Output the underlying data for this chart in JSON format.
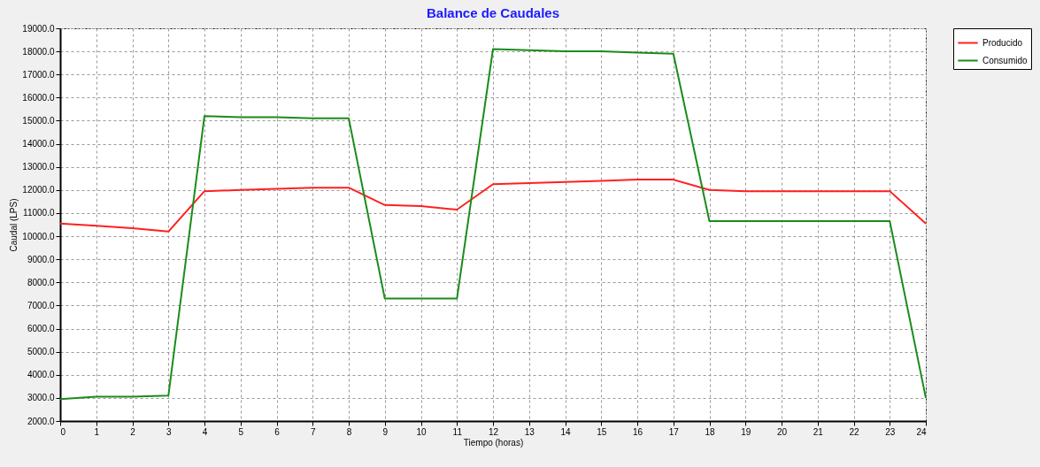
{
  "chart_data": {
    "type": "line",
    "title": "Balance de Caudales",
    "xlabel": "Tiempo (horas)",
    "ylabel": "Caudal (LPS)",
    "x": [
      0,
      1,
      2,
      3,
      4,
      5,
      6,
      7,
      8,
      9,
      10,
      11,
      12,
      13,
      14,
      15,
      16,
      17,
      18,
      19,
      20,
      21,
      22,
      23,
      24
    ],
    "series": [
      {
        "name": "Producido",
        "color": "#ff2020",
        "values": [
          10550,
          10450,
          10350,
          10200,
          11950,
          12000,
          12050,
          12100,
          12100,
          11350,
          11300,
          11150,
          12250,
          12300,
          12350,
          12400,
          12450,
          12450,
          12000,
          11950,
          11950,
          11950,
          11950,
          11950,
          10550
        ]
      },
      {
        "name": "Consumido",
        "color": "#1a8c1a",
        "values": [
          2950,
          3050,
          3050,
          3100,
          15200,
          15150,
          15150,
          15100,
          15100,
          7300,
          7300,
          7300,
          18100,
          18050,
          18000,
          18000,
          17950,
          17900,
          10650,
          10650,
          10650,
          10650,
          10650,
          10650,
          3000
        ]
      }
    ],
    "xlim": [
      0,
      24
    ],
    "xticks": [
      0,
      1,
      2,
      3,
      4,
      5,
      6,
      7,
      8,
      9,
      10,
      11,
      12,
      13,
      14,
      15,
      16,
      17,
      18,
      19,
      20,
      21,
      22,
      23,
      24
    ],
    "ylim": [
      2000,
      19000
    ],
    "yticks": [
      {
        "value": 2000,
        "label": "2000.0"
      },
      {
        "value": 3000,
        "label": "3000.0"
      },
      {
        "value": 4000,
        "label": "4000.0"
      },
      {
        "value": 5000,
        "label": "5000.0"
      },
      {
        "value": 6000,
        "label": "6000.0"
      },
      {
        "value": 7000,
        "label": "7000.0"
      },
      {
        "value": 8000,
        "label": "8000.0"
      },
      {
        "value": 9000,
        "label": "9000.0"
      },
      {
        "value": 10000,
        "label": "10000.0"
      },
      {
        "value": 11000,
        "label": "11000.0"
      },
      {
        "value": 12000,
        "label": "12000.0"
      },
      {
        "value": 13000,
        "label": "13000.0"
      },
      {
        "value": 14000,
        "label": "14000.0"
      },
      {
        "value": 15000,
        "label": "15000.0"
      },
      {
        "value": 16000,
        "label": "16000.0"
      },
      {
        "value": 17000,
        "label": "17000.0"
      },
      {
        "value": 18000,
        "label": "18000.0"
      },
      {
        "value": 19000,
        "label": "19000.0"
      }
    ],
    "grid": true,
    "legend": "top right",
    "marker": "none",
    "line_style": "solid"
  }
}
